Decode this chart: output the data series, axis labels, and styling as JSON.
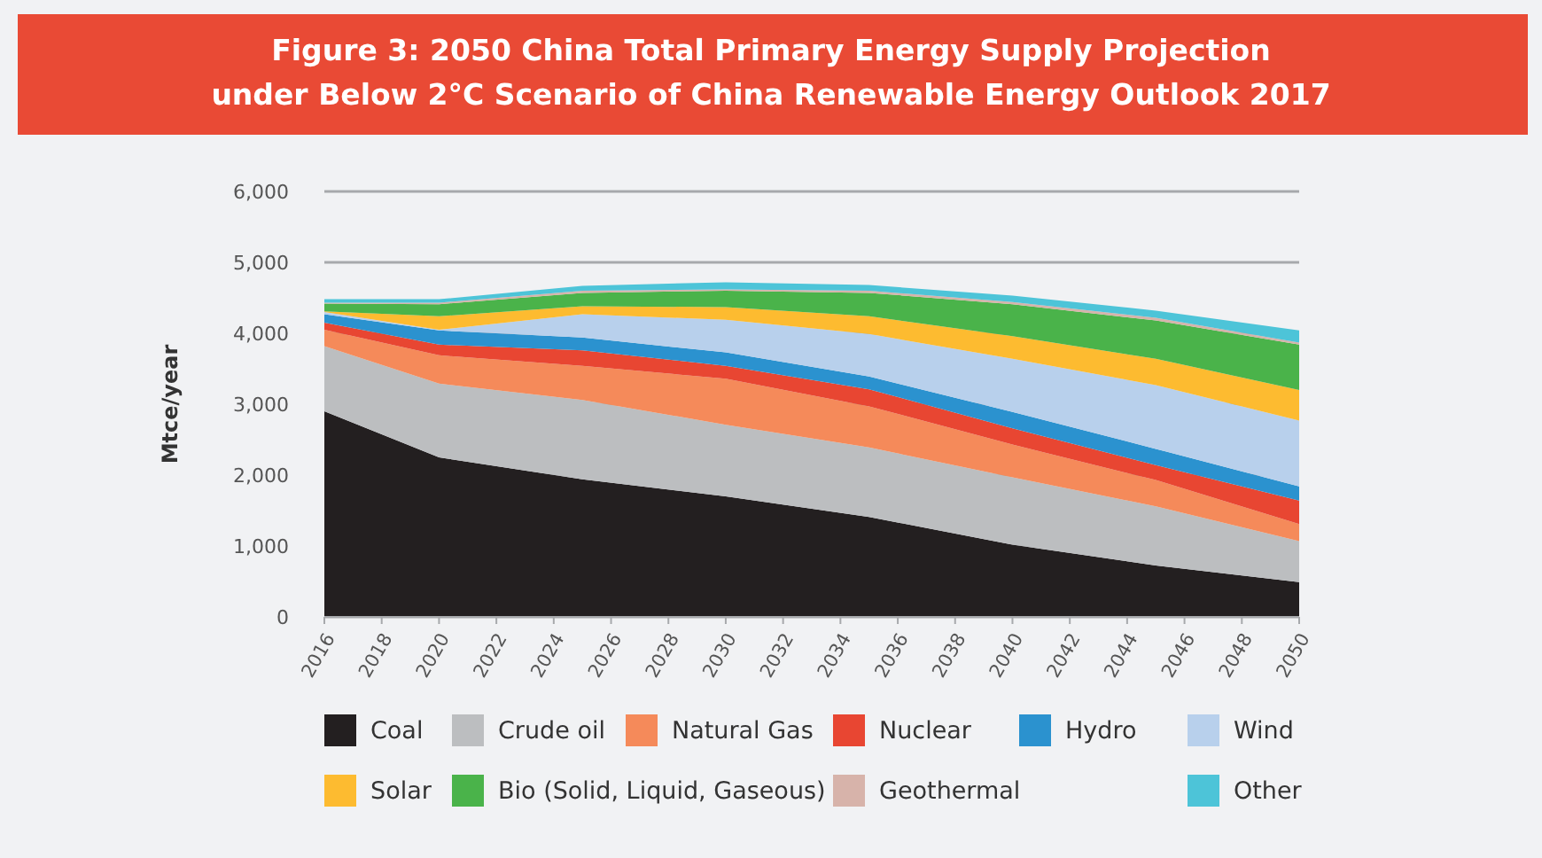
{
  "chart_data": {
    "type": "area",
    "stacked": true,
    "title": "Figure 3: 2050 China Total Primary Energy Supply Projection\nunder Below 2°C Scenario of China Renewable Energy Outlook 2017",
    "ylabel": "Mtce/year",
    "x": [
      2016,
      2020,
      2025,
      2030,
      2035,
      2040,
      2045,
      2050
    ],
    "xlim": [
      2016,
      2050
    ],
    "xticks": [
      2016,
      2018,
      2020,
      2022,
      2024,
      2026,
      2028,
      2030,
      2032,
      2034,
      2036,
      2038,
      2040,
      2042,
      2044,
      2046,
      2048,
      2050
    ],
    "ylim": [
      0,
      6000
    ],
    "yticks": [
      0,
      {
        "value": 1000,
        "label": "1,000"
      },
      {
        "value": 2000,
        "label": "2,000"
      },
      {
        "value": 3000,
        "label": "3,000"
      },
      {
        "value": 4000,
        "label": "4,000"
      },
      {
        "value": 5000,
        "label": "5,000"
      },
      {
        "value": 6000,
        "label": "6,000"
      }
    ],
    "grid": "y",
    "legend": "bottom",
    "series": [
      {
        "name": "Coal",
        "color": "#231f20",
        "values": [
          2900,
          2250,
          1940,
          1700,
          1410,
          1020,
          725,
          490
        ]
      },
      {
        "name": "Crude oil",
        "color": "#bcbec0",
        "values": [
          920,
          1040,
          1120,
          1010,
          980,
          950,
          835,
          580
        ]
      },
      {
        "name": "Natural Gas",
        "color": "#f58a5a",
        "values": [
          230,
          400,
          480,
          650,
          580,
          460,
          370,
          240
        ]
      },
      {
        "name": "Nuclear",
        "color": "#e84632",
        "values": [
          100,
          150,
          220,
          180,
          240,
          230,
          210,
          330
        ]
      },
      {
        "name": "Hydro",
        "color": "#2b92cf",
        "values": [
          120,
          200,
          180,
          190,
          180,
          230,
          230,
          200
        ]
      },
      {
        "name": "Wind",
        "color": "#b8d0ec",
        "values": [
          30,
          10,
          330,
          460,
          600,
          750,
          900,
          930
        ]
      },
      {
        "name": "Solar",
        "color": "#fdbb30",
        "values": [
          10,
          190,
          110,
          180,
          250,
          320,
          370,
          430
        ]
      },
      {
        "name": "Bio (Solid, Liquid, Gaseous)",
        "color": "#4ab34a",
        "values": [
          110,
          170,
          190,
          230,
          330,
          450,
          540,
          640
        ]
      },
      {
        "name": "Geothermal",
        "color": "#d7b3aa",
        "values": [
          10,
          20,
          30,
          20,
          30,
          30,
          40,
          30
        ]
      },
      {
        "name": "Other",
        "color": "#4dc4d8",
        "values": [
          50,
          50,
          70,
          100,
          80,
          90,
          100,
          170
        ]
      }
    ]
  }
}
